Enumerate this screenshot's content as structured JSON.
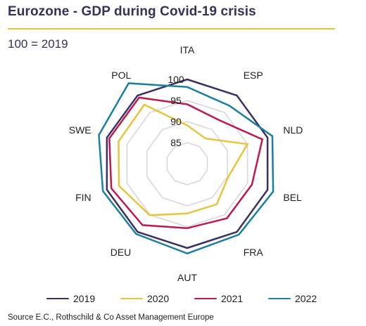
{
  "title": "Eurozone - GDP during Covid-19 crisis",
  "subtitle": "100 = 2019",
  "source": "Source E.C., Rothschild  & Co Asset Management Europe",
  "chart_data": {
    "type": "radar",
    "title": "Eurozone - GDP during Covid-19 crisis",
    "subtitle": "100 = 2019",
    "categories": [
      "ITA",
      "ESP",
      "NLD",
      "BEL",
      "FRA",
      "AUT",
      "DEU",
      "FIN",
      "SWE",
      "POL"
    ],
    "tick_labels": [
      "85",
      "90",
      "95",
      "100"
    ],
    "ticks": [
      85,
      90,
      95,
      100
    ],
    "rlim": [
      80,
      105
    ],
    "grid": true,
    "legend_position": "bottom",
    "series": [
      {
        "name": "2019",
        "color": "#3b2f63",
        "values": [
          100,
          100,
          100,
          100,
          100,
          100,
          100,
          100,
          100,
          100
        ]
      },
      {
        "name": "2020",
        "color": "#e8c33c",
        "values": [
          89.1,
          87.4,
          95.0,
          90.2,
          91.9,
          91.8,
          95.1,
          97.0,
          97.1,
          97.3
        ]
      },
      {
        "name": "2021",
        "color": "#c0184a",
        "values": [
          94.1,
          92.8,
          98.7,
          96.1,
          96.0,
          95.3,
          98.0,
          98.9,
          99.4,
          99.4
        ]
      },
      {
        "name": "2022",
        "color": "#1a7fa3",
        "values": [
          98.2,
          97.0,
          101.2,
          101.4,
          100.8,
          101.3,
          100.6,
          101.0,
          102.0,
          103.6
        ]
      }
    ]
  }
}
